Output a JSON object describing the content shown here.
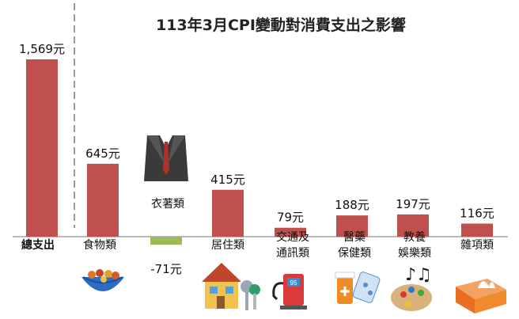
{
  "chart_data": {
    "type": "bar",
    "title": "113年3月CPI變動對消費支出之影響",
    "unit": "元",
    "categories": [
      "總支出",
      "食物類",
      "衣著類",
      "居住類",
      "交通及\n通訊類",
      "醫藥\n保健類",
      "教養\n娛樂類",
      "雜項類"
    ],
    "values": [
      1569,
      645,
      -71,
      415,
      79,
      188,
      197,
      116
    ],
    "value_labels": [
      "1,569元",
      "645元",
      "-71元",
      "415元",
      "79元",
      "188元",
      "197元",
      "116元"
    ],
    "colors": {
      "positive": "#c0504d",
      "negative": "#9bbb59",
      "baseline": "#777777"
    },
    "icons": [
      "",
      "food-bowl-icon",
      "suit-icon",
      "house-keys-icon",
      "fuel-pump-icon",
      "medicine-icon",
      "art-music-icon",
      "tissue-box-icon"
    ]
  }
}
